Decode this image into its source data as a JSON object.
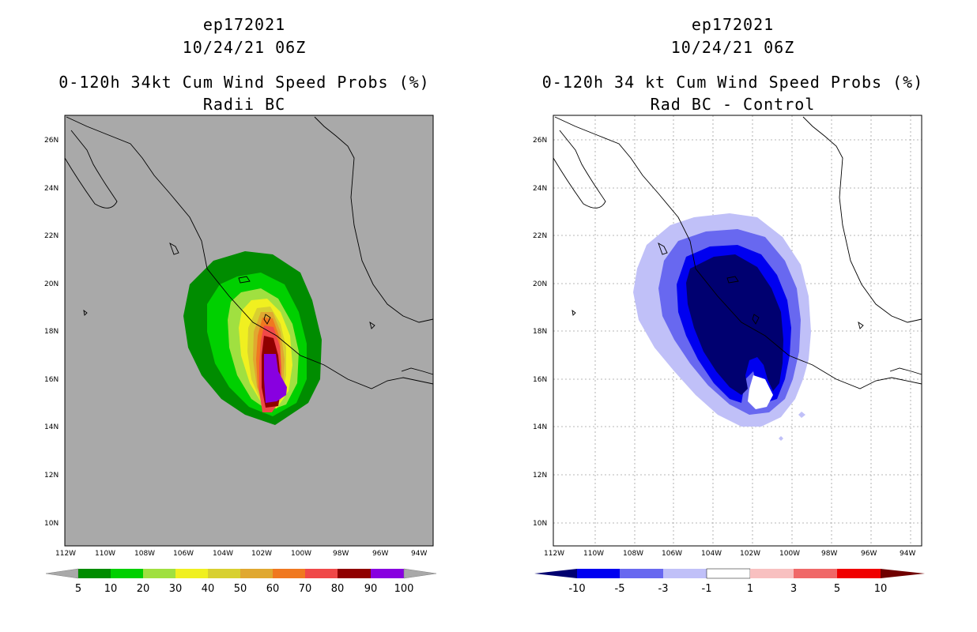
{
  "colors": {
    "left_background": "#a9a9a9",
    "right_background": "#ffffff",
    "coast": "#000000",
    "grid": "#a0a0a0"
  },
  "left_panel": {
    "title_line1": "ep172021",
    "title_line2": "10/24/21 06Z",
    "title_line3": "0-120h 34kt Cum Wind Speed Probs (%)",
    "title_line4": "Radii BC",
    "colorbar": {
      "colors": [
        "#008c00",
        "#00d000",
        "#a0e040",
        "#f0f020",
        "#d8d030",
        "#e0a830",
        "#f07820",
        "#f04848",
        "#900000",
        "#8800e0"
      ],
      "labels": [
        "5",
        "10",
        "20",
        "30",
        "40",
        "50",
        "60",
        "70",
        "80",
        "90",
        "100"
      ]
    }
  },
  "right_panel": {
    "title_line1": "ep172021",
    "title_line2": "10/24/21 06Z",
    "title_line3": "0-120h 34 kt Cum Wind Speed Probs (%)",
    "title_line4": "Rad BC - Control",
    "colorbar": {
      "colors": [
        "#000070",
        "#0000f0",
        "#6868f0",
        "#c0c0f8",
        "#ffffff",
        "#f8c0c0",
        "#f06868",
        "#f00000",
        "#700000"
      ],
      "labels": [
        "-10",
        "-5",
        "-3",
        "-1",
        "1",
        "3",
        "5",
        "10"
      ]
    }
  },
  "axes": {
    "lat_labels": [
      "26N",
      "24N",
      "22N",
      "20N",
      "18N",
      "16N",
      "14N",
      "12N",
      "10N"
    ],
    "lon_labels": [
      "112W",
      "110W",
      "108W",
      "106W",
      "104W",
      "102W",
      "100W",
      "98W",
      "96W",
      "94W"
    ]
  }
}
